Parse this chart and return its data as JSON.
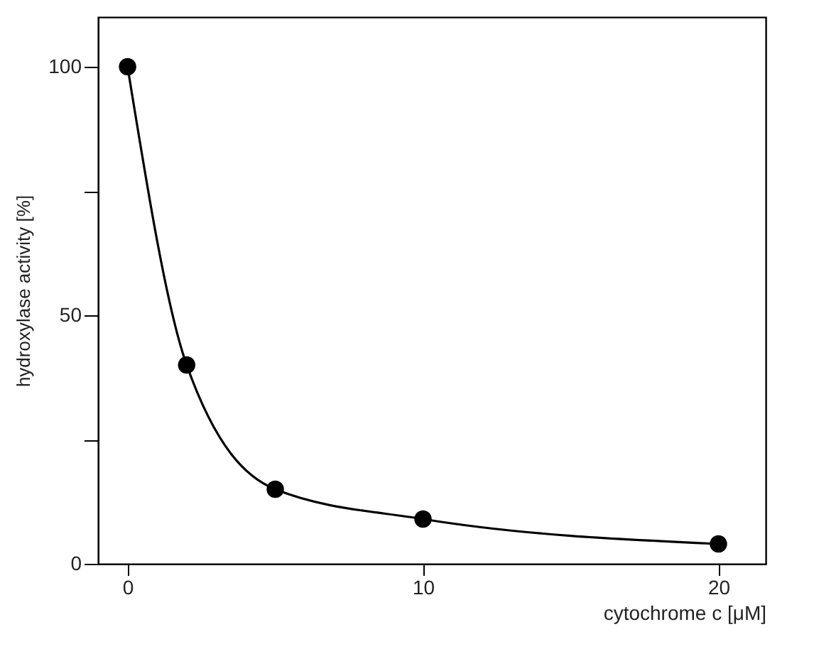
{
  "chart_data": {
    "type": "line",
    "xlabel": "cytochrome c [μM]",
    "ylabel": "hydroxylase activity [%]",
    "x": [
      0,
      2,
      5,
      10,
      20
    ],
    "series": [
      {
        "color": "#000000",
        "values": [
          100,
          40,
          15,
          9,
          4
        ]
      }
    ],
    "xlim": [
      -1,
      21.6
    ],
    "xticks": [
      0,
      10,
      20
    ],
    "ylim": [
      0,
      110
    ],
    "yticks": [
      0,
      {
        "value": 25,
        "label": null
      },
      50,
      {
        "value": 75,
        "label": null
      },
      100
    ],
    "marker": "circle",
    "line_style": "solid",
    "grid": false
  }
}
